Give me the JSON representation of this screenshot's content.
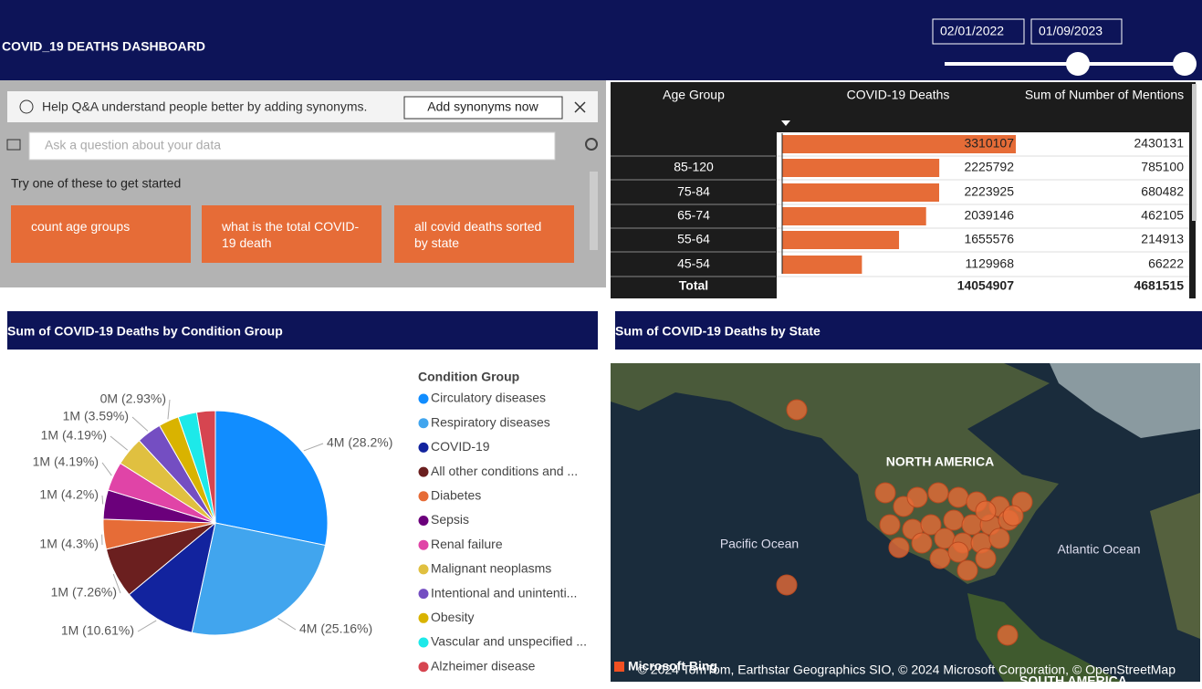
{
  "header": {
    "title": "COVID_19 DEATHS DASHBOARD",
    "start_date": "02/01/2022",
    "end_date": "01/09/2023"
  },
  "qa": {
    "notice": "Help Q&A understand people better by adding synonyms.",
    "button": "Add synonyms now",
    "placeholder": "Ask a question about your data",
    "prompt": "Try one of these to get started",
    "suggestions": [
      "count age groups",
      "what is the total COVID-19 death",
      "all covid deaths sorted by state"
    ]
  },
  "table": {
    "columns": [
      "Age Group",
      "COVID-19 Deaths",
      "Sum of Number of Mentions"
    ],
    "rows": [
      [
        null,
        3310107,
        2430131
      ],
      [
        "85-120",
        2225792,
        785100
      ],
      [
        "75-84",
        2223925,
        680482
      ],
      [
        "65-74",
        2039146,
        462105
      ],
      [
        "55-64",
        1655576,
        214913
      ],
      [
        "45-54",
        1129968,
        66222
      ]
    ],
    "total": [
      "Total",
      14054907,
      4681515
    ]
  },
  "chart_data": {
    "type": "pie",
    "title": "Sum of COVID-19 Deaths by Condition Group",
    "legend_title": "Condition Group",
    "categories": [
      "Circulatory diseases",
      "Respiratory diseases",
      "COVID-19",
      "All other conditions and ...",
      "Diabetes",
      "Sepsis",
      "Renal failure",
      "Malignant neoplasms",
      "Intentional and unintenti...",
      "Obesity",
      "Vascular and unspecified ...",
      "Alzheimer disease"
    ],
    "values": [
      28.2,
      25.16,
      10.61,
      7.26,
      4.3,
      4.2,
      4.19,
      4.19,
      3.59,
      2.93,
      2.7,
      2.67
    ],
    "value_labels": [
      "4M (28.2%)",
      "4M (25.16%)",
      "1M (10.61%)",
      "1M (7.26%)",
      "1M (4.3%)",
      "1M (4.2%)",
      "1M (4.19%)",
      "1M (4.19%)",
      "1M (3.59%)",
      "0M (2.93%)",
      null,
      null
    ],
    "colors": [
      "#118dff",
      "#41a5ee",
      "#12239e",
      "#6b1f1f",
      "#e66c37",
      "#6b007b",
      "#e044a7",
      "#e0c040",
      "#744ec2",
      "#d9b300",
      "#1de9e9",
      "#d64550"
    ]
  },
  "map": {
    "title": "Sum of COVID-19 Deaths by State",
    "region": "NORTH AMERICA",
    "pacific": "Pacific Ocean",
    "atlantic": "Atlantic Ocean",
    "south": "SOUTH AMERICA",
    "logo": "Microsoft Bing",
    "attribution": "© 2024 TomTom, Earthstar Geographics SIO, © 2024 Microsoft Corporation, © OpenStreetMap"
  }
}
